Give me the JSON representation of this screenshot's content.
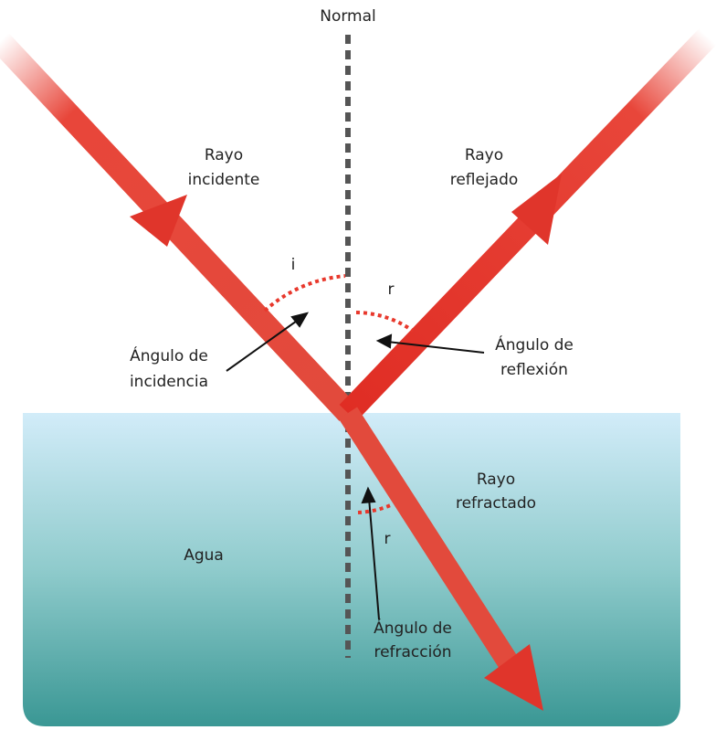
{
  "title": "Normal",
  "labels": {
    "incident_ray": [
      "Rayo",
      "incidente"
    ],
    "reflected_ray": [
      "Rayo",
      "reflejado"
    ],
    "angle_i": "i",
    "angle_r": "r",
    "incidence_angle": [
      "Ángulo de",
      "incidencia"
    ],
    "reflection_angle": [
      "Ángulo de",
      "reflexión"
    ],
    "refracted_ray": [
      "Rayo",
      "refractado"
    ],
    "medium": "Agua",
    "angle_r2": "r",
    "refraction_angle": [
      "Ángulo de",
      "refracción"
    ]
  }
}
